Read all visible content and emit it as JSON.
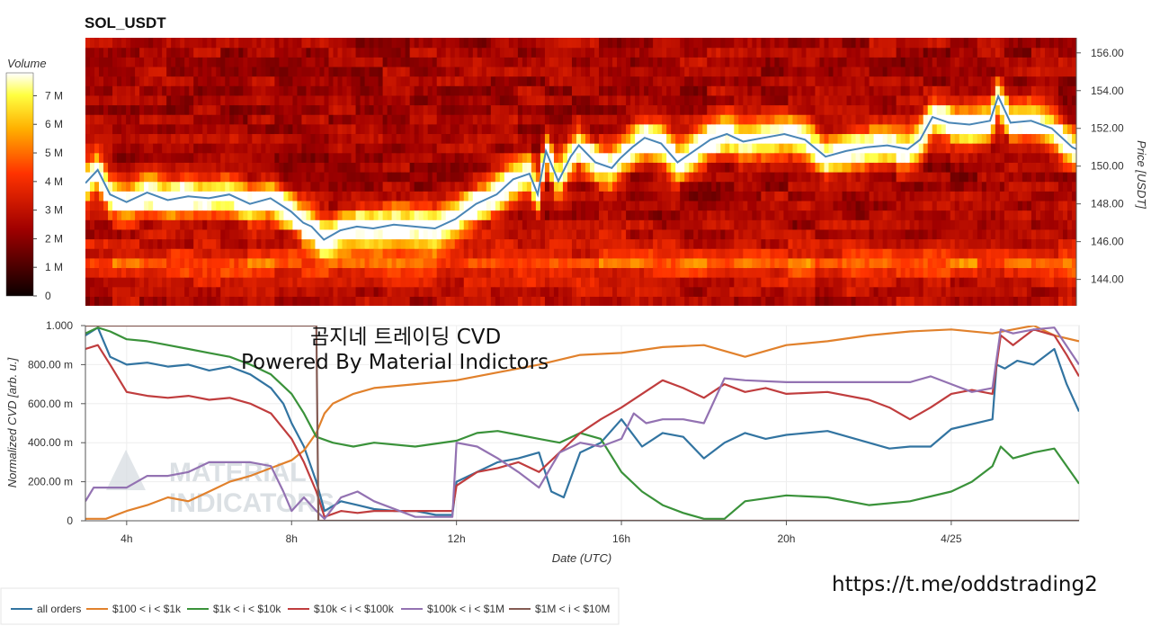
{
  "title": "SOL_USDT",
  "overlay": {
    "line1": "곰지네 트레이딩 CVD",
    "line2": "Powered By Material Indictors",
    "url": "https://t.me/oddstrading2",
    "watermark": [
      "MATERIAL",
      "INDICATORS"
    ]
  },
  "colors": {
    "all_orders": "#3274a1",
    "b100_1k": "#e1812c",
    "b1k_10k": "#3a923a",
    "b10k_100k": "#c03d3e",
    "b100k_1M": "#9372b2",
    "b1M_10M": "#845b53",
    "price_line": "#4a86b5"
  },
  "chart_data": [
    {
      "type": "heatmap",
      "title": "SOL_USDT",
      "colorbar": {
        "label": "Volume",
        "ticks": [
          "0",
          "1 M",
          "2 M",
          "3 M",
          "4 M",
          "5 M",
          "6 M",
          "7 M"
        ],
        "range": [
          0,
          7800000
        ],
        "colormap": "hot"
      },
      "y_axis": {
        "label": "Price [USDT]",
        "ticks": [
          "144.00",
          "146.00",
          "148.00",
          "150.00",
          "152.00",
          "154.00",
          "156.00"
        ],
        "ylim": [
          142.6,
          156.8
        ]
      },
      "x_axis": {
        "xlim_hours": [
          3.0,
          27.1
        ]
      },
      "price_line": {
        "name": "price",
        "x": [
          3.0,
          3.3,
          3.6,
          4.0,
          4.5,
          5.0,
          5.5,
          6.0,
          6.5,
          7.0,
          7.5,
          8.0,
          8.3,
          8.5,
          8.8,
          9.2,
          9.6,
          10.0,
          10.5,
          11.0,
          11.5,
          12.0,
          12.5,
          13.0,
          13.4,
          13.8,
          14.0,
          14.2,
          14.5,
          14.8,
          15.0,
          15.4,
          15.8,
          16.0,
          16.3,
          16.6,
          17.0,
          17.4,
          17.8,
          18.2,
          18.6,
          19.0,
          19.5,
          20.0,
          20.5,
          21.0,
          21.5,
          22.0,
          22.5,
          23.0,
          23.3,
          23.6,
          24.0,
          24.5,
          25.0,
          25.2,
          25.5,
          26.0,
          26.5,
          27.0,
          27.1
        ],
        "y": [
          149.1,
          149.8,
          148.5,
          148.1,
          148.6,
          148.2,
          148.4,
          148.3,
          148.5,
          148.0,
          148.3,
          147.6,
          147.0,
          146.8,
          146.1,
          146.6,
          146.8,
          146.7,
          146.9,
          146.8,
          146.7,
          147.2,
          148.0,
          148.5,
          149.3,
          149.6,
          148.5,
          150.8,
          149.2,
          150.5,
          151.1,
          150.2,
          149.9,
          150.4,
          151.0,
          151.5,
          151.2,
          150.2,
          150.8,
          151.4,
          151.7,
          151.3,
          151.5,
          151.7,
          151.4,
          150.5,
          150.8,
          151.0,
          151.1,
          150.9,
          151.4,
          152.6,
          152.3,
          152.2,
          152.4,
          153.7,
          152.3,
          152.4,
          152.0,
          151.0,
          150.9
        ]
      }
    },
    {
      "type": "line",
      "xlabel": "Date (UTC)",
      "ylabel": "Normalized CVD [arb. u.]",
      "x_ticks": [
        "4h",
        "8h",
        "12h",
        "16h",
        "20h",
        "4/25"
      ],
      "x_tick_hours": [
        4,
        8,
        12,
        16,
        20,
        24
      ],
      "y_ticks": [
        "0",
        "200.00 m",
        "400.00 m",
        "600.00 m",
        "800.00 m",
        "1.000"
      ],
      "ylim": [
        0,
        1.0
      ],
      "xlim_hours": [
        3.0,
        27.1
      ],
      "legend_position": "bottom",
      "series": [
        {
          "name": "all orders",
          "color_key": "all_orders",
          "x": [
            3.0,
            3.3,
            3.6,
            4.0,
            4.5,
            5.0,
            5.5,
            6.0,
            6.5,
            7.0,
            7.5,
            7.8,
            8.0,
            8.3,
            8.6,
            8.8,
            9.2,
            9.6,
            10.0,
            10.5,
            11.0,
            11.5,
            11.9,
            12.0,
            12.5,
            13.0,
            13.5,
            14.0,
            14.3,
            14.6,
            15.0,
            15.5,
            16.0,
            16.5,
            17.0,
            17.5,
            18.0,
            18.5,
            19.0,
            19.5,
            20.0,
            21.0,
            22.0,
            22.5,
            23.0,
            23.5,
            24.0,
            25.0,
            25.1,
            25.3,
            25.6,
            26.0,
            26.5,
            26.8,
            27.1
          ],
          "y": [
            0.95,
            0.99,
            0.84,
            0.8,
            0.81,
            0.79,
            0.8,
            0.77,
            0.79,
            0.75,
            0.68,
            0.6,
            0.5,
            0.38,
            0.2,
            0.05,
            0.1,
            0.08,
            0.06,
            0.05,
            0.05,
            0.03,
            0.03,
            0.2,
            0.25,
            0.3,
            0.32,
            0.35,
            0.15,
            0.12,
            0.35,
            0.4,
            0.52,
            0.38,
            0.45,
            0.43,
            0.32,
            0.4,
            0.45,
            0.42,
            0.44,
            0.46,
            0.4,
            0.37,
            0.38,
            0.38,
            0.47,
            0.52,
            0.8,
            0.78,
            0.82,
            0.8,
            0.88,
            0.7,
            0.56
          ]
        },
        {
          "name": "$100 < i < $1k",
          "color_key": "b100_1k",
          "x": [
            3.0,
            3.5,
            4.0,
            4.5,
            5.0,
            5.5,
            6.0,
            6.5,
            7.0,
            7.5,
            8.0,
            8.3,
            8.6,
            8.8,
            9.0,
            9.5,
            10.0,
            11.0,
            12.0,
            13.0,
            14.0,
            15.0,
            16.0,
            17.0,
            18.0,
            19.0,
            20.0,
            21.0,
            22.0,
            23.0,
            24.0,
            25.0,
            25.5,
            26.0,
            26.5,
            27.1
          ],
          "y": [
            0.01,
            0.01,
            0.05,
            0.08,
            0.12,
            0.1,
            0.15,
            0.2,
            0.23,
            0.27,
            0.31,
            0.36,
            0.45,
            0.55,
            0.6,
            0.65,
            0.68,
            0.7,
            0.72,
            0.76,
            0.8,
            0.85,
            0.86,
            0.89,
            0.9,
            0.84,
            0.9,
            0.92,
            0.95,
            0.97,
            0.98,
            0.96,
            0.98,
            1.0,
            0.95,
            0.92
          ]
        },
        {
          "name": "$1k < i < $10k",
          "color_key": "b1k_10k",
          "x": [
            3.0,
            3.3,
            3.6,
            4.0,
            4.5,
            5.0,
            5.5,
            6.0,
            6.5,
            7.0,
            7.5,
            8.0,
            8.3,
            8.6,
            9.0,
            9.5,
            10.0,
            11.0,
            12.0,
            12.5,
            13.0,
            13.5,
            14.0,
            14.5,
            15.0,
            15.5,
            16.0,
            16.5,
            17.0,
            17.5,
            18.0,
            18.5,
            19.0,
            20.0,
            21.0,
            22.0,
            23.0,
            24.0,
            24.5,
            25.0,
            25.2,
            25.5,
            26.0,
            26.5,
            27.1
          ],
          "y": [
            0.96,
            0.99,
            0.97,
            0.93,
            0.92,
            0.9,
            0.88,
            0.86,
            0.84,
            0.8,
            0.75,
            0.65,
            0.55,
            0.43,
            0.4,
            0.38,
            0.4,
            0.38,
            0.41,
            0.45,
            0.46,
            0.44,
            0.42,
            0.4,
            0.45,
            0.42,
            0.25,
            0.15,
            0.08,
            0.04,
            0.01,
            0.01,
            0.1,
            0.13,
            0.12,
            0.08,
            0.1,
            0.15,
            0.2,
            0.28,
            0.38,
            0.32,
            0.35,
            0.37,
            0.19
          ]
        },
        {
          "name": "$10k < i < $100k",
          "color_key": "b10k_100k",
          "x": [
            3.0,
            3.3,
            3.6,
            4.0,
            4.5,
            5.0,
            5.5,
            6.0,
            6.5,
            7.0,
            7.5,
            8.0,
            8.3,
            8.6,
            8.8,
            9.2,
            9.6,
            10.0,
            11.0,
            11.9,
            12.0,
            12.5,
            13.0,
            13.5,
            14.0,
            14.5,
            15.0,
            15.5,
            16.0,
            16.5,
            17.0,
            17.5,
            18.0,
            18.5,
            19.0,
            19.5,
            20.0,
            21.0,
            22.0,
            22.5,
            23.0,
            23.5,
            24.0,
            24.5,
            25.0,
            25.2,
            25.5,
            26.0,
            26.5,
            26.8,
            27.1
          ],
          "y": [
            0.88,
            0.9,
            0.8,
            0.66,
            0.64,
            0.63,
            0.64,
            0.62,
            0.63,
            0.6,
            0.55,
            0.42,
            0.3,
            0.15,
            0.02,
            0.05,
            0.04,
            0.05,
            0.05,
            0.05,
            0.18,
            0.25,
            0.27,
            0.3,
            0.25,
            0.35,
            0.45,
            0.52,
            0.58,
            0.65,
            0.72,
            0.68,
            0.63,
            0.7,
            0.66,
            0.68,
            0.65,
            0.66,
            0.62,
            0.58,
            0.52,
            0.58,
            0.65,
            0.67,
            0.65,
            0.95,
            0.9,
            0.98,
            0.95,
            0.85,
            0.74
          ]
        },
        {
          "name": "$100k < i < $1M",
          "color_key": "b100k_1M",
          "x": [
            3.0,
            3.2,
            4.0,
            4.5,
            5.0,
            5.5,
            6.0,
            6.5,
            7.0,
            7.5,
            7.8,
            8.0,
            8.3,
            8.6,
            8.8,
            9.2,
            9.6,
            10.0,
            11.0,
            11.9,
            12.0,
            12.5,
            13.0,
            13.5,
            14.0,
            14.5,
            15.0,
            15.5,
            16.0,
            16.3,
            16.6,
            17.0,
            17.5,
            18.0,
            18.5,
            19.0,
            20.0,
            21.0,
            22.0,
            23.0,
            23.5,
            24.0,
            24.5,
            25.0,
            25.2,
            25.5,
            26.0,
            26.5,
            27.1
          ],
          "y": [
            0.1,
            0.17,
            0.17,
            0.23,
            0.23,
            0.25,
            0.3,
            0.3,
            0.3,
            0.28,
            0.15,
            0.05,
            0.12,
            0.05,
            0.01,
            0.12,
            0.15,
            0.1,
            0.02,
            0.02,
            0.4,
            0.38,
            0.32,
            0.25,
            0.17,
            0.35,
            0.4,
            0.38,
            0.42,
            0.55,
            0.5,
            0.52,
            0.52,
            0.5,
            0.73,
            0.72,
            0.71,
            0.71,
            0.71,
            0.71,
            0.74,
            0.7,
            0.66,
            0.68,
            0.98,
            0.96,
            0.98,
            0.99,
            0.8
          ]
        },
        {
          "name": "$1M < i < $10M",
          "color_key": "b1M_10M",
          "x": [
            3.0,
            3.1,
            7.9,
            8.0,
            8.3,
            8.6,
            8.65,
            27.1
          ],
          "y": [
            1.0,
            1.0,
            1.0,
            1.0,
            1.0,
            1.0,
            0.0,
            0.0
          ]
        }
      ]
    }
  ]
}
